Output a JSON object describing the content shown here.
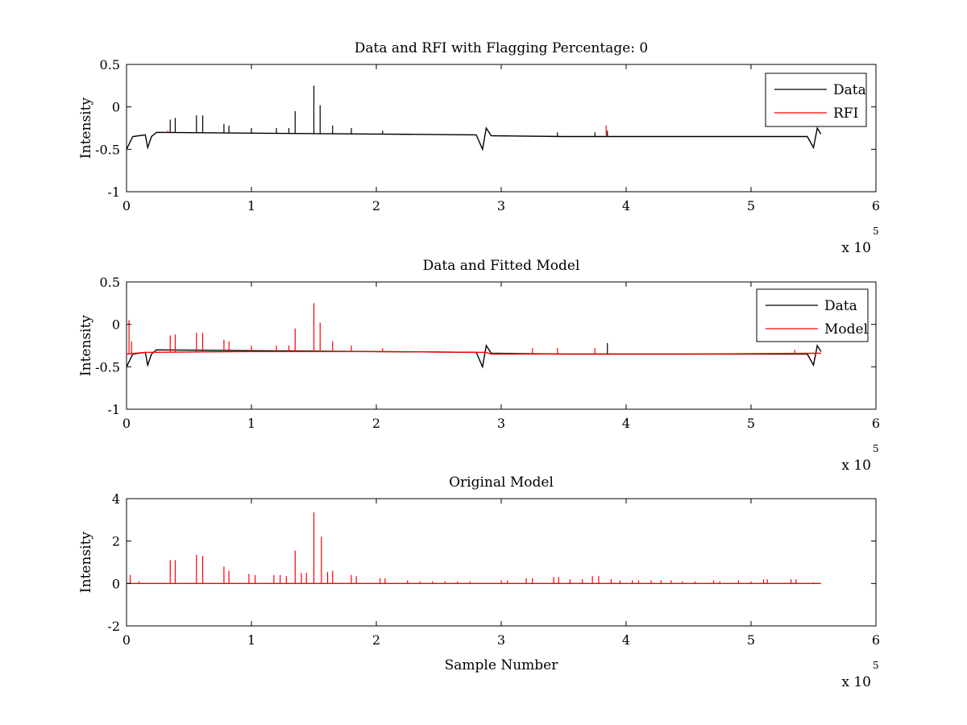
{
  "figure": {
    "background": "#ffffff",
    "axis_color": "#000000"
  },
  "chart_data": [
    {
      "type": "line",
      "title": "Data and RFI with Flagging Percentage: 0",
      "xlabel": "",
      "ylabel": "Intensity",
      "xlim": [
        0,
        6
      ],
      "ylim": [
        -1,
        0.5
      ],
      "x_multiplier": "x 10",
      "x_exponent": "5",
      "x_ticks": [
        "0",
        "1",
        "2",
        "3",
        "4",
        "5",
        "6"
      ],
      "y_ticks": [
        "-1",
        "-0.5",
        "0",
        "0.5"
      ],
      "y_tick_values": [
        -1,
        -0.5,
        0,
        0.5
      ],
      "legend": "top-right",
      "series": [
        {
          "name": "Data",
          "color": "#000000",
          "baseline": [
            [
              0,
              -0.5
            ],
            [
              0.05,
              -0.35
            ],
            [
              0.15,
              -0.33
            ],
            [
              0.17,
              -0.48
            ],
            [
              0.2,
              -0.35
            ],
            [
              0.24,
              -0.3
            ],
            [
              1.0,
              -0.31
            ],
            [
              2.0,
              -0.32
            ],
            [
              2.8,
              -0.33
            ],
            [
              2.85,
              -0.5
            ],
            [
              2.88,
              -0.25
            ],
            [
              2.92,
              -0.34
            ],
            [
              3.5,
              -0.35
            ],
            [
              4.5,
              -0.35
            ],
            [
              5.45,
              -0.35
            ],
            [
              5.5,
              -0.48
            ],
            [
              5.53,
              -0.25
            ],
            [
              5.56,
              -0.32
            ]
          ],
          "spikes": [
            [
              0.35,
              -0.15
            ],
            [
              0.39,
              -0.13
            ],
            [
              0.56,
              -0.1
            ],
            [
              0.61,
              -0.1
            ],
            [
              0.78,
              -0.2
            ],
            [
              0.82,
              -0.22
            ],
            [
              1.0,
              -0.25
            ],
            [
              1.2,
              -0.25
            ],
            [
              1.3,
              -0.25
            ],
            [
              1.35,
              -0.05
            ],
            [
              1.5,
              0.25
            ],
            [
              1.55,
              0.02
            ],
            [
              1.65,
              -0.22
            ],
            [
              1.8,
              -0.25
            ],
            [
              2.05,
              -0.28
            ],
            [
              3.45,
              -0.3
            ],
            [
              3.75,
              -0.3
            ],
            [
              3.85,
              -0.28
            ]
          ]
        },
        {
          "name": "RFI",
          "color": "#ff0000",
          "baseline": [],
          "spikes": [
            [
              0.33,
              -0.28
            ],
            [
              3.84,
              -0.22
            ]
          ]
        }
      ]
    },
    {
      "type": "line",
      "title": "Data and Fitted Model",
      "xlabel": "",
      "ylabel": "Intensity",
      "xlim": [
        0,
        6
      ],
      "ylim": [
        -1,
        0.5
      ],
      "x_multiplier": "x 10",
      "x_exponent": "5",
      "x_ticks": [
        "0",
        "1",
        "2",
        "3",
        "4",
        "5",
        "6"
      ],
      "y_ticks": [
        "-1",
        "-0.5",
        "0",
        "0.5"
      ],
      "y_tick_values": [
        -1,
        -0.5,
        0,
        0.5
      ],
      "legend": "top-right",
      "series": [
        {
          "name": "Data",
          "color": "#000000",
          "baseline": [
            [
              0,
              -0.5
            ],
            [
              0.05,
              -0.35
            ],
            [
              0.15,
              -0.33
            ],
            [
              0.17,
              -0.48
            ],
            [
              0.2,
              -0.35
            ],
            [
              0.24,
              -0.3
            ],
            [
              1.0,
              -0.31
            ],
            [
              2.0,
              -0.32
            ],
            [
              2.8,
              -0.33
            ],
            [
              2.85,
              -0.5
            ],
            [
              2.88,
              -0.25
            ],
            [
              2.92,
              -0.34
            ],
            [
              3.5,
              -0.35
            ],
            [
              4.5,
              -0.35
            ],
            [
              5.45,
              -0.35
            ],
            [
              5.5,
              -0.48
            ],
            [
              5.53,
              -0.25
            ],
            [
              5.56,
              -0.32
            ]
          ],
          "spikes": [
            [
              3.85,
              -0.22
            ]
          ]
        },
        {
          "name": "Model",
          "color": "#ff0000",
          "baseline": [
            [
              0,
              -0.35
            ],
            [
              0.15,
              -0.33
            ],
            [
              1.0,
              -0.32
            ],
            [
              2.0,
              -0.32
            ],
            [
              2.88,
              -0.33
            ],
            [
              2.92,
              -0.35
            ],
            [
              4.5,
              -0.35
            ],
            [
              5.56,
              -0.34
            ]
          ],
          "spikes": [
            [
              0.02,
              0.05
            ],
            [
              0.04,
              -0.2
            ],
            [
              0.35,
              -0.13
            ],
            [
              0.39,
              -0.12
            ],
            [
              0.56,
              -0.1
            ],
            [
              0.61,
              -0.1
            ],
            [
              0.78,
              -0.18
            ],
            [
              0.82,
              -0.2
            ],
            [
              1.0,
              -0.25
            ],
            [
              1.2,
              -0.25
            ],
            [
              1.3,
              -0.25
            ],
            [
              1.35,
              -0.05
            ],
            [
              1.5,
              0.25
            ],
            [
              1.55,
              0.02
            ],
            [
              1.65,
              -0.2
            ],
            [
              1.8,
              -0.25
            ],
            [
              2.05,
              -0.28
            ],
            [
              3.25,
              -0.28
            ],
            [
              3.45,
              -0.28
            ],
            [
              3.75,
              -0.28
            ],
            [
              5.35,
              -0.3
            ]
          ]
        }
      ]
    },
    {
      "type": "line",
      "title": "Original Model",
      "xlabel": "Sample Number",
      "ylabel": "Intensity",
      "xlim": [
        0,
        6
      ],
      "ylim": [
        -2,
        4
      ],
      "x_multiplier": "x 10",
      "x_exponent": "5",
      "x_ticks": [
        "0",
        "1",
        "2",
        "3",
        "4",
        "5",
        "6"
      ],
      "y_ticks": [
        "-2",
        "0",
        "2",
        "4"
      ],
      "y_tick_values": [
        -2,
        0,
        2,
        4
      ],
      "series": [
        {
          "name": "",
          "color": "#ff0000",
          "baseline": [
            [
              0,
              0
            ],
            [
              5.56,
              0
            ]
          ],
          "spikes": [
            [
              0.03,
              0.4
            ],
            [
              0.1,
              0.1
            ],
            [
              0.35,
              1.1
            ],
            [
              0.39,
              1.1
            ],
            [
              0.56,
              1.35
            ],
            [
              0.61,
              1.3
            ],
            [
              0.78,
              0.8
            ],
            [
              0.82,
              0.6
            ],
            [
              0.98,
              0.45
            ],
            [
              1.03,
              0.4
            ],
            [
              1.18,
              0.4
            ],
            [
              1.23,
              0.4
            ],
            [
              1.28,
              0.35
            ],
            [
              1.35,
              1.55
            ],
            [
              1.4,
              0.5
            ],
            [
              1.44,
              0.5
            ],
            [
              1.5,
              3.35
            ],
            [
              1.56,
              2.2
            ],
            [
              1.61,
              0.55
            ],
            [
              1.65,
              0.6
            ],
            [
              1.8,
              0.4
            ],
            [
              1.84,
              0.35
            ],
            [
              2.03,
              0.25
            ],
            [
              2.07,
              0.25
            ],
            [
              2.25,
              0.15
            ],
            [
              2.35,
              0.1
            ],
            [
              2.45,
              0.1
            ],
            [
              2.55,
              0.1
            ],
            [
              2.65,
              0.1
            ],
            [
              2.75,
              0.1
            ],
            [
              3.0,
              0.15
            ],
            [
              3.05,
              0.15
            ],
            [
              3.2,
              0.25
            ],
            [
              3.25,
              0.25
            ],
            [
              3.42,
              0.3
            ],
            [
              3.46,
              0.3
            ],
            [
              3.55,
              0.2
            ],
            [
              3.65,
              0.2
            ],
            [
              3.73,
              0.35
            ],
            [
              3.78,
              0.35
            ],
            [
              3.88,
              0.2
            ],
            [
              3.95,
              0.15
            ],
            [
              4.05,
              0.15
            ],
            [
              4.1,
              0.15
            ],
            [
              4.2,
              0.15
            ],
            [
              4.28,
              0.15
            ],
            [
              4.36,
              0.15
            ],
            [
              4.45,
              0.1
            ],
            [
              4.55,
              0.1
            ],
            [
              4.7,
              0.15
            ],
            [
              4.75,
              0.1
            ],
            [
              4.9,
              0.15
            ],
            [
              5.0,
              0.1
            ],
            [
              5.1,
              0.2
            ],
            [
              5.13,
              0.2
            ],
            [
              5.32,
              0.2
            ],
            [
              5.36,
              0.2
            ],
            [
              5.5,
              0.05
            ]
          ]
        }
      ]
    }
  ]
}
